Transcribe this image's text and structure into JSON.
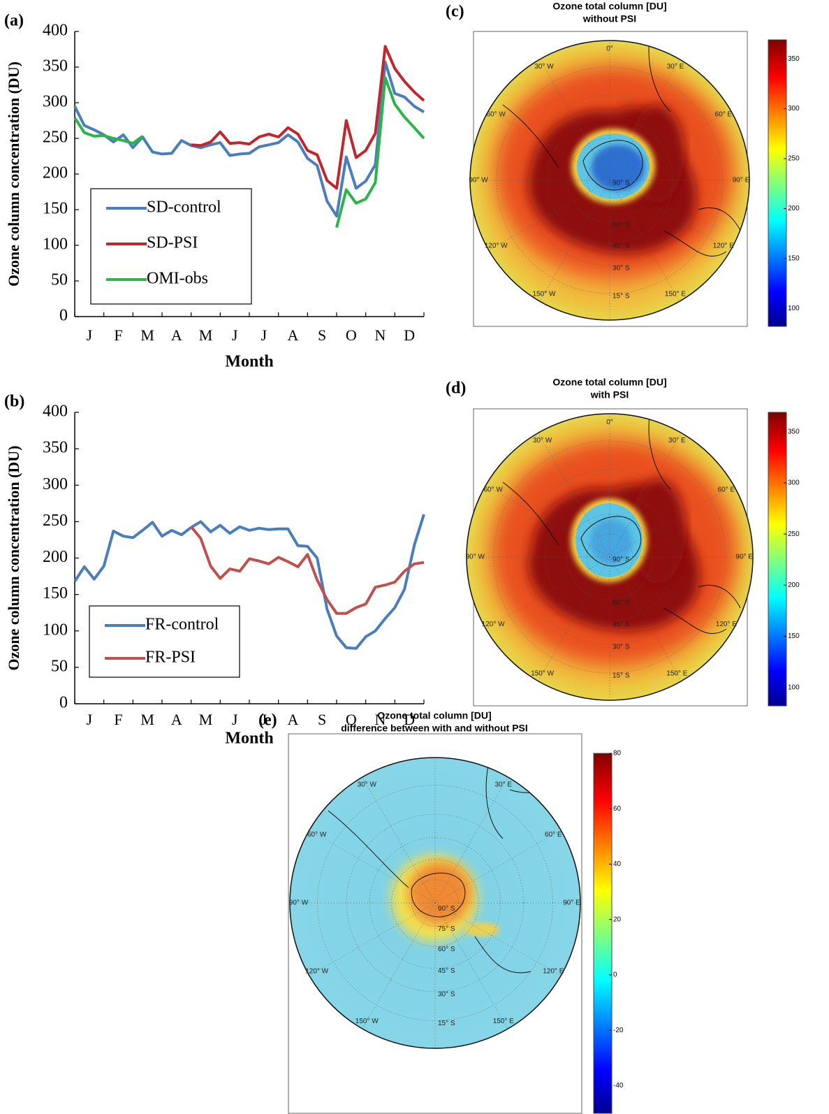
{
  "chart_data": [
    {
      "type": "line",
      "panel": "(a)",
      "y_label": "Ozone column concentration (DU)",
      "x_label": "Month",
      "x": [
        0,
        0.33,
        0.67,
        1,
        1.33,
        1.67,
        2,
        2.33,
        2.67,
        3,
        3.33,
        3.67,
        4,
        4.33,
        4.67,
        5,
        5.33,
        5.67,
        6,
        6.33,
        6.67,
        7,
        7.33,
        7.67,
        8,
        8.33,
        8.67,
        9,
        9.33,
        9.67,
        10,
        10.33,
        10.67,
        11,
        11.33,
        11.67,
        12
      ],
      "xlim": [
        0,
        12
      ],
      "xticks": [
        {
          "value": 0.5,
          "label": "J"
        },
        {
          "value": 1.5,
          "label": "F"
        },
        {
          "value": 2.5,
          "label": "M"
        },
        {
          "value": 3.5,
          "label": "A"
        },
        {
          "value": 4.5,
          "label": "M"
        },
        {
          "value": 5.5,
          "label": "J"
        },
        {
          "value": 6.5,
          "label": "J"
        },
        {
          "value": 7.5,
          "label": "A"
        },
        {
          "value": 8.5,
          "label": "S"
        },
        {
          "value": 9.5,
          "label": "O"
        },
        {
          "value": 10.5,
          "label": "N"
        },
        {
          "value": 11.5,
          "label": "D"
        }
      ],
      "xminorticks": [
        0,
        1,
        2,
        3,
        4,
        5,
        6,
        7,
        8,
        9,
        10,
        11,
        12
      ],
      "ylim": [
        0,
        400
      ],
      "yticks": [
        0,
        50,
        100,
        150,
        200,
        250,
        300,
        350,
        400
      ],
      "legend": "lower left",
      "series": [
        {
          "name": "SD-control",
          "color": "#4a7ebb",
          "values": [
            295,
            268,
            262,
            255,
            245,
            255,
            237,
            252,
            231,
            228,
            229,
            247,
            240,
            237,
            241,
            244,
            226,
            228,
            229,
            238,
            241,
            244,
            255,
            245,
            222,
            212,
            162,
            141,
            224,
            180,
            190,
            213,
            357,
            313,
            308,
            295,
            287
          ]
        },
        {
          "name": "SD-PSI",
          "color": "#c0272d",
          "values": [
            null,
            null,
            null,
            null,
            null,
            null,
            null,
            null,
            null,
            null,
            null,
            null,
            241,
            240,
            245,
            259,
            243,
            244,
            242,
            252,
            256,
            252,
            265,
            256,
            233,
            227,
            191,
            180,
            275,
            223,
            233,
            257,
            379,
            348,
            330,
            315,
            303
          ]
        },
        {
          "name": "OMI-obs",
          "color": "#2db34a",
          "values": [
            279,
            258,
            253,
            254,
            250,
            247,
            243,
            253,
            null,
            null,
            null,
            null,
            null,
            null,
            null,
            null,
            null,
            null,
            null,
            null,
            null,
            null,
            null,
            null,
            null,
            null,
            null,
            125,
            178,
            159,
            165,
            188,
            335,
            298,
            280,
            265,
            250
          ]
        }
      ]
    },
    {
      "type": "line",
      "panel": "(b)",
      "y_label": "Ozone column concentration (DU)",
      "x_label": "Month",
      "x": [
        0,
        0.33,
        0.67,
        1,
        1.33,
        1.67,
        2,
        2.33,
        2.67,
        3,
        3.33,
        3.67,
        4,
        4.33,
        4.67,
        5,
        5.33,
        5.67,
        6,
        6.33,
        6.67,
        7,
        7.33,
        7.67,
        8,
        8.33,
        8.67,
        9,
        9.33,
        9.67,
        10,
        10.33,
        10.67,
        11,
        11.33,
        11.67,
        12
      ],
      "xlim": [
        0,
        12
      ],
      "xticks": [
        {
          "value": 0.5,
          "label": "J"
        },
        {
          "value": 1.5,
          "label": "F"
        },
        {
          "value": 2.5,
          "label": "M"
        },
        {
          "value": 3.5,
          "label": "A"
        },
        {
          "value": 4.5,
          "label": "M"
        },
        {
          "value": 5.5,
          "label": "J"
        },
        {
          "value": 6.5,
          "label": "J"
        },
        {
          "value": 7.5,
          "label": "A"
        },
        {
          "value": 8.5,
          "label": "S"
        },
        {
          "value": 9.5,
          "label": "O"
        },
        {
          "value": 10.5,
          "label": "N"
        },
        {
          "value": 11.5,
          "label": "D"
        }
      ],
      "xminorticks": [
        0,
        1,
        2,
        3,
        4,
        5,
        6,
        7,
        8,
        9,
        10,
        11,
        12
      ],
      "ylim": [
        0,
        400
      ],
      "yticks": [
        0,
        50,
        100,
        150,
        200,
        250,
        300,
        350,
        400
      ],
      "legend": "lower left",
      "series": [
        {
          "name": "FR-control",
          "color": "#4a7ebb",
          "values": [
            168,
            188,
            171,
            189,
            237,
            230,
            228,
            238,
            249,
            230,
            238,
            232,
            242,
            250,
            236,
            245,
            234,
            243,
            238,
            241,
            239,
            240,
            240,
            217,
            216,
            200,
            130,
            93,
            77,
            76,
            92,
            100,
            117,
            132,
            157,
            218,
            260
          ]
        },
        {
          "name": "FR-PSI",
          "color": "#c0504d",
          "values": [
            null,
            null,
            null,
            null,
            null,
            null,
            null,
            null,
            null,
            null,
            null,
            null,
            243,
            227,
            189,
            172,
            185,
            182,
            199,
            196,
            192,
            201,
            195,
            188,
            205,
            170,
            143,
            124,
            124,
            132,
            137,
            160,
            163,
            167,
            182,
            192,
            194
          ]
        }
      ]
    },
    {
      "type": "map",
      "panel": "(c)",
      "title": "Ozone total column [DU]",
      "subtitle": "without PSI",
      "colormap": "jet",
      "clim": [
        82,
        369
      ],
      "cticks": [
        100,
        150,
        200,
        250,
        300,
        350
      ],
      "lon_labels": [
        "0°",
        "30° E",
        "60° E",
        "90° E",
        "120° E",
        "150° E",
        "150° W",
        "120° W",
        "90° W",
        "60° W",
        "30° W"
      ],
      "lat_labels": [
        "90° S",
        "60° S",
        "45° S",
        "30° S",
        "15° S"
      ]
    },
    {
      "type": "map",
      "panel": "(d)",
      "title": "Ozone total column [DU]",
      "subtitle": "with PSI",
      "colormap": "jet",
      "clim": [
        82,
        369
      ],
      "cticks": [
        100,
        150,
        200,
        250,
        300,
        350
      ],
      "lon_labels": [
        "0°",
        "30° E",
        "60° E",
        "90° E",
        "120° E",
        "150° E",
        "150° W",
        "120° W",
        "90° W",
        "60° W",
        "30° W"
      ],
      "lat_labels": [
        "90° S",
        "60° S",
        "45° S",
        "30° S",
        "15° S"
      ]
    },
    {
      "type": "map",
      "panel": "(e)",
      "title": "Ozone total column [DU]",
      "subtitle": "difference between with and without PSI",
      "colormap": "jet",
      "clim": [
        -50,
        80
      ],
      "cticks": [
        -40,
        -20,
        0,
        20,
        40,
        60,
        80
      ],
      "lon_labels": [
        "30° E",
        "60° E",
        "90° E",
        "120° E",
        "150° E",
        "150° W",
        "120° W",
        "90° W",
        "60° W",
        "30° W"
      ],
      "lat_labels": [
        "90° S",
        "75° S",
        "60° S",
        "45° S",
        "30° S",
        "15° S"
      ]
    }
  ]
}
